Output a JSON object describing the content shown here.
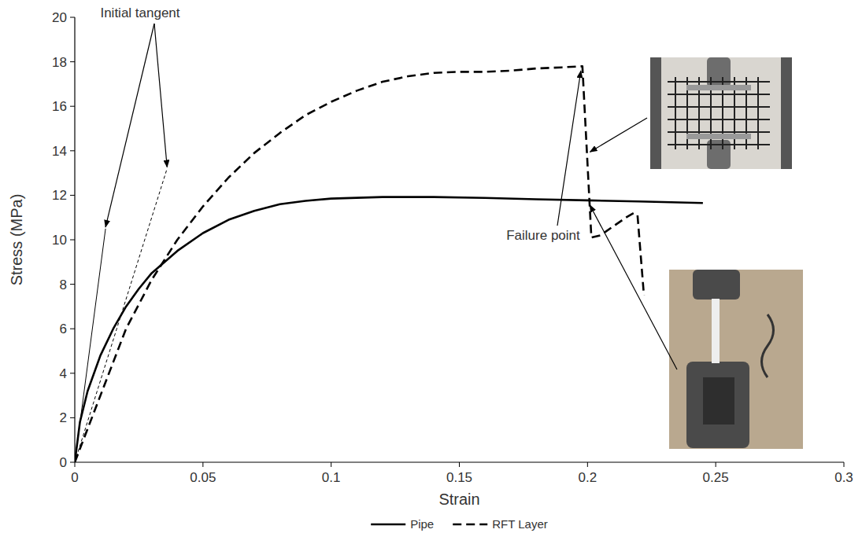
{
  "chart_data": {
    "type": "line",
    "x_label": "Strain",
    "y_label": "Stress (MPa)",
    "xlim": [
      0,
      0.3
    ],
    "ylim": [
      0,
      20
    ],
    "xticks": [
      0,
      0.05,
      0.1,
      0.15,
      0.2,
      0.25,
      0.3
    ],
    "yticks": [
      0,
      2,
      4,
      6,
      8,
      10,
      12,
      14,
      16,
      18,
      20
    ],
    "grid": false,
    "legend": "bottom",
    "series": [
      {
        "name": "Pipe",
        "color": "#000000",
        "line_style": "solid",
        "x": [
          0,
          0.002,
          0.005,
          0.01,
          0.015,
          0.02,
          0.025,
          0.03,
          0.04,
          0.05,
          0.06,
          0.07,
          0.08,
          0.09,
          0.1,
          0.12,
          0.14,
          0.16,
          0.18,
          0.2,
          0.22,
          0.245
        ],
        "values": [
          0,
          1.8,
          3.2,
          4.8,
          6.0,
          7.0,
          7.8,
          8.5,
          9.5,
          10.3,
          10.9,
          11.3,
          11.6,
          11.75,
          11.85,
          11.92,
          11.92,
          11.88,
          11.82,
          11.77,
          11.72,
          11.65
        ]
      },
      {
        "name": "RFT Layer",
        "color": "#000000",
        "line_style": "dashed",
        "x": [
          0,
          0.005,
          0.01,
          0.015,
          0.02,
          0.03,
          0.04,
          0.05,
          0.06,
          0.07,
          0.08,
          0.09,
          0.1,
          0.11,
          0.12,
          0.13,
          0.14,
          0.15,
          0.16,
          0.17,
          0.18,
          0.19,
          0.198,
          0.2015,
          0.205,
          0.21,
          0.215,
          0.218,
          0.2195,
          0.222
        ],
        "values": [
          0,
          1.5,
          3.0,
          4.5,
          6.0,
          8.2,
          10.0,
          11.5,
          12.8,
          13.9,
          14.8,
          15.6,
          16.2,
          16.7,
          17.1,
          17.35,
          17.5,
          17.55,
          17.55,
          17.6,
          17.7,
          17.75,
          17.8,
          10.1,
          10.2,
          10.6,
          11.0,
          11.2,
          11.1,
          7.5
        ]
      }
    ],
    "initial_tangent": {
      "text": "Initial tangent",
      "lines": [
        {
          "line_style": "solid",
          "x": [
            0,
            0.012
          ],
          "values": [
            0,
            10.5
          ]
        },
        {
          "line_style": "dashed",
          "x": [
            0,
            0.036
          ],
          "values": [
            0,
            13.2
          ]
        }
      ]
    },
    "failure_point": {
      "text": "Failure point"
    }
  }
}
